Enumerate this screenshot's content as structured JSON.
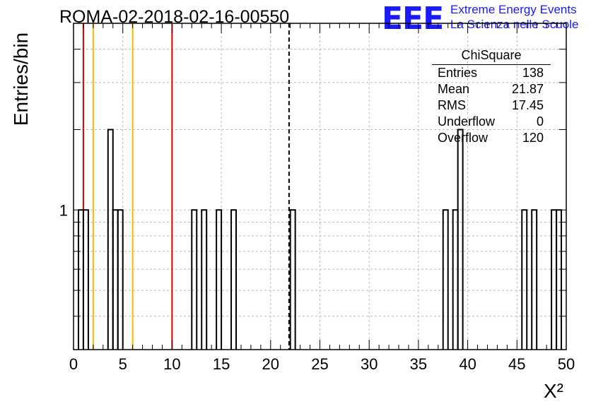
{
  "header": {
    "title": "ROMA-02-2018-02-16-00550",
    "logo": "EEE",
    "logo_line1": "Extreme Energy Events",
    "logo_line2": "La Scienza nelle Scuole"
  },
  "stats": {
    "title": "ChiSquare",
    "rows": [
      {
        "label": "Entries",
        "value": "138"
      },
      {
        "label": "Mean",
        "value": "21.87"
      },
      {
        "label": "RMS",
        "value": "17.45"
      },
      {
        "label": "Underflow",
        "value": "0"
      },
      {
        "label": "Overflow",
        "value": "120"
      }
    ]
  },
  "chart_data": {
    "type": "bar",
    "style": "step-histogram",
    "title": "ROMA-02-2018-02-16-00550",
    "xlabel": "Χ²",
    "ylabel": "Entries/bin",
    "xlim": [
      0,
      50
    ],
    "ylim_log": [
      0.3,
      5
    ],
    "y_scale": "log",
    "grid": true,
    "bin_width": 0.5,
    "bins": [
      {
        "x": 0.5,
        "count": 1
      },
      {
        "x": 1.0,
        "count": 1
      },
      {
        "x": 3.5,
        "count": 2
      },
      {
        "x": 4.0,
        "count": 1
      },
      {
        "x": 4.5,
        "count": 1
      },
      {
        "x": 12.0,
        "count": 1
      },
      {
        "x": 13.0,
        "count": 1
      },
      {
        "x": 14.5,
        "count": 1
      },
      {
        "x": 16.0,
        "count": 1
      },
      {
        "x": 22.0,
        "count": 1
      },
      {
        "x": 37.5,
        "count": 1
      },
      {
        "x": 38.5,
        "count": 1
      },
      {
        "x": 39.0,
        "count": 2
      },
      {
        "x": 45.5,
        "count": 1
      },
      {
        "x": 46.5,
        "count": 1
      },
      {
        "x": 48.5,
        "count": 1
      },
      {
        "x": 49.0,
        "count": 1
      }
    ],
    "x_ticks": [
      0,
      5,
      10,
      15,
      20,
      25,
      30,
      35,
      40,
      45,
      50
    ],
    "y_tick_labels": [
      {
        "value": 1,
        "label": "1"
      }
    ],
    "reference_lines": [
      {
        "x": 1,
        "color": "#e00000",
        "style": "solid"
      },
      {
        "x": 2,
        "color": "#f0c000",
        "style": "solid"
      },
      {
        "x": 6,
        "color": "#f0c000",
        "style": "solid"
      },
      {
        "x": 10,
        "color": "#e00000",
        "style": "solid"
      },
      {
        "x": 21.87,
        "color": "#000000",
        "style": "dashed"
      }
    ]
  }
}
